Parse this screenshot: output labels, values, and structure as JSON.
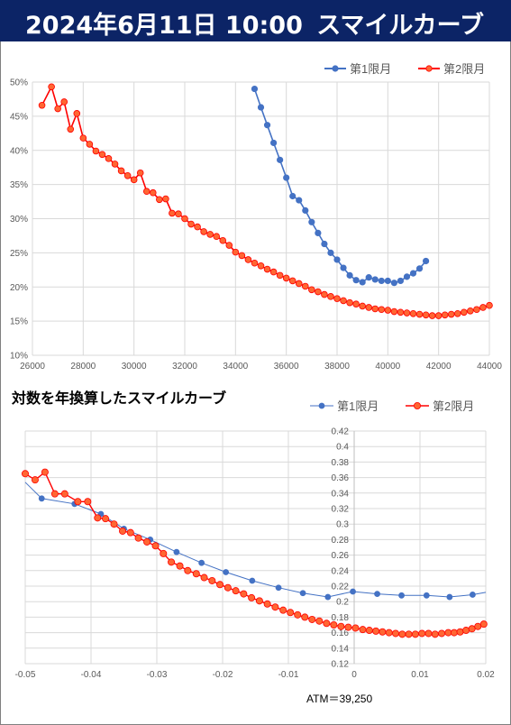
{
  "header": {
    "date_time": "2024年6月11日 10:00",
    "title": "スマイルカーブ"
  },
  "colors": {
    "header_bg": "#0c2466",
    "series1": "#4472c4",
    "series2_line": "#ff0000",
    "series2_fill": "#ff6633"
  },
  "chart_data": [
    {
      "type": "line",
      "title": "",
      "xlabel": "",
      "ylabel": "",
      "xlim": [
        26000,
        44000
      ],
      "ylim": [
        0.1,
        0.5
      ],
      "x_ticks": [
        26000,
        28000,
        30000,
        32000,
        34000,
        36000,
        38000,
        40000,
        42000,
        44000
      ],
      "x_tick_labels": [
        "26000",
        "28000",
        "30000",
        "32000",
        "34000",
        "36000",
        "38000",
        "40000",
        "42000",
        "44000"
      ],
      "y_ticks": [
        0.1,
        0.15,
        0.2,
        0.25,
        0.3,
        0.35,
        0.4,
        0.45,
        0.5
      ],
      "y_tick_labels": [
        "10%",
        "15%",
        "20%",
        "25%",
        "30%",
        "35%",
        "40%",
        "45%",
        "50%"
      ],
      "grid": true,
      "legend": "top-right",
      "series": [
        {
          "name": "第1限月",
          "x": [
            34750,
            35000,
            35250,
            35500,
            35750,
            36000,
            36250,
            36500,
            36750,
            37000,
            37250,
            37500,
            37750,
            38000,
            38250,
            38500,
            38750,
            39000,
            39250,
            39500,
            39750,
            40000,
            40250,
            40500,
            40750,
            41000,
            41250,
            41500
          ],
          "y": [
            0.49,
            0.463,
            0.437,
            0.411,
            0.386,
            0.36,
            0.333,
            0.327,
            0.312,
            0.295,
            0.279,
            0.263,
            0.25,
            0.24,
            0.228,
            0.217,
            0.21,
            0.207,
            0.214,
            0.211,
            0.209,
            0.209,
            0.206,
            0.209,
            0.215,
            0.22,
            0.227,
            0.238
          ]
        },
        {
          "name": "第2限月",
          "x": [
            26375,
            26750,
            27000,
            27250,
            27500,
            27750,
            28000,
            28250,
            28500,
            28750,
            29000,
            29250,
            29500,
            29750,
            30000,
            30250,
            30500,
            30750,
            31000,
            31250,
            31500,
            31750,
            32000,
            32250,
            32500,
            32750,
            33000,
            33250,
            33500,
            33750,
            34000,
            34250,
            34500,
            34750,
            35000,
            35250,
            35500,
            35750,
            36000,
            36250,
            36500,
            36750,
            37000,
            37250,
            37500,
            37750,
            38000,
            38250,
            38500,
            38750,
            39000,
            39250,
            39500,
            39750,
            40000,
            40250,
            40500,
            40750,
            41000,
            41250,
            41500,
            41750,
            42000,
            42250,
            42500,
            42750,
            43000,
            43250,
            43500,
            43750,
            44000
          ],
          "y": [
            0.466,
            0.493,
            0.461,
            0.471,
            0.431,
            0.454,
            0.418,
            0.409,
            0.399,
            0.394,
            0.388,
            0.38,
            0.37,
            0.363,
            0.357,
            0.367,
            0.34,
            0.338,
            0.328,
            0.329,
            0.308,
            0.307,
            0.3,
            0.292,
            0.288,
            0.281,
            0.277,
            0.274,
            0.268,
            0.261,
            0.251,
            0.246,
            0.24,
            0.235,
            0.231,
            0.226,
            0.222,
            0.217,
            0.213,
            0.209,
            0.205,
            0.201,
            0.196,
            0.193,
            0.189,
            0.186,
            0.183,
            0.18,
            0.177,
            0.175,
            0.172,
            0.17,
            0.168,
            0.167,
            0.166,
            0.164,
            0.163,
            0.162,
            0.161,
            0.16,
            0.159,
            0.158,
            0.158,
            0.159,
            0.16,
            0.161,
            0.163,
            0.165,
            0.167,
            0.17,
            0.173
          ]
        }
      ]
    },
    {
      "type": "line",
      "title": "対数を年換算したスマイルカーブ",
      "xlabel": "",
      "ylabel": "",
      "xlim": [
        -0.05,
        0.02
      ],
      "ylim": [
        0.12,
        0.42
      ],
      "x_ticks": [
        -0.05,
        -0.04,
        -0.03,
        -0.02,
        -0.01,
        0,
        0.01,
        0.02
      ],
      "x_tick_labels": [
        "-0.05",
        "-0.04",
        "-0.03",
        "-0.02",
        "-0.01",
        "0",
        "0.01",
        "0.02"
      ],
      "y_ticks": [
        0.12,
        0.14,
        0.16,
        0.18,
        0.2,
        0.22,
        0.24,
        0.26,
        0.28,
        0.3,
        0.32,
        0.34,
        0.36,
        0.38,
        0.4,
        0.42
      ],
      "y_tick_labels": [
        "0.12",
        "0.14",
        "0.16",
        "0.18",
        "0.2",
        "0.22",
        "0.24",
        "0.26",
        "0.28",
        "0.3",
        "0.32",
        "0.34",
        "0.36",
        "0.38",
        "0.4",
        "0.42"
      ],
      "grid": true,
      "legend": "top-right",
      "annotation": "ATM＝39,250",
      "series": [
        {
          "name": "第1限月",
          "x": [
            -0.05,
            -0.0475,
            -0.0425,
            -0.0385,
            -0.035,
            -0.031,
            -0.027,
            -0.0232,
            -0.0195,
            -0.0155,
            -0.0115,
            -0.0078,
            -0.004,
            -0.0002,
            0.0035,
            0.0072,
            0.011,
            0.0145,
            0.018,
            0.02
          ],
          "y": [
            0.354,
            0.333,
            0.326,
            0.313,
            0.294,
            0.28,
            0.264,
            0.25,
            0.238,
            0.227,
            0.218,
            0.211,
            0.206,
            0.213,
            0.21,
            0.208,
            0.208,
            0.206,
            0.209,
            0.212
          ]
        },
        {
          "name": "第2限月",
          "x": [
            -0.05,
            -0.0485,
            -0.047,
            -0.0455,
            -0.044,
            -0.042,
            -0.0405,
            -0.039,
            -0.0378,
            -0.0365,
            -0.0352,
            -0.034,
            -0.0328,
            -0.0315,
            -0.0302,
            -0.029,
            -0.0278,
            -0.0265,
            -0.0253,
            -0.024,
            -0.0228,
            -0.0216,
            -0.0204,
            -0.0192,
            -0.018,
            -0.0168,
            -0.0156,
            -0.0144,
            -0.0132,
            -0.012,
            -0.0108,
            -0.0097,
            -0.0086,
            -0.0075,
            -0.0064,
            -0.0053,
            -0.0042,
            -0.0031,
            -0.002,
            -0.0009,
            0.0002,
            0.0013,
            0.0023,
            0.0033,
            0.0043,
            0.0053,
            0.0063,
            0.0073,
            0.0083,
            0.0093,
            0.0103,
            0.0113,
            0.0123,
            0.0133,
            0.0143,
            0.0152,
            0.0161,
            0.017,
            0.0179,
            0.0188,
            0.0197
          ],
          "y": [
            0.365,
            0.357,
            0.367,
            0.339,
            0.339,
            0.329,
            0.329,
            0.308,
            0.307,
            0.3,
            0.291,
            0.289,
            0.282,
            0.277,
            0.272,
            0.262,
            0.251,
            0.246,
            0.24,
            0.236,
            0.231,
            0.227,
            0.222,
            0.218,
            0.214,
            0.21,
            0.205,
            0.201,
            0.197,
            0.193,
            0.189,
            0.186,
            0.183,
            0.18,
            0.177,
            0.175,
            0.172,
            0.17,
            0.168,
            0.167,
            0.166,
            0.164,
            0.163,
            0.162,
            0.161,
            0.16,
            0.159,
            0.158,
            0.158,
            0.158,
            0.159,
            0.159,
            0.158,
            0.159,
            0.16,
            0.16,
            0.161,
            0.163,
            0.165,
            0.168,
            0.171
          ]
        }
      ]
    }
  ]
}
